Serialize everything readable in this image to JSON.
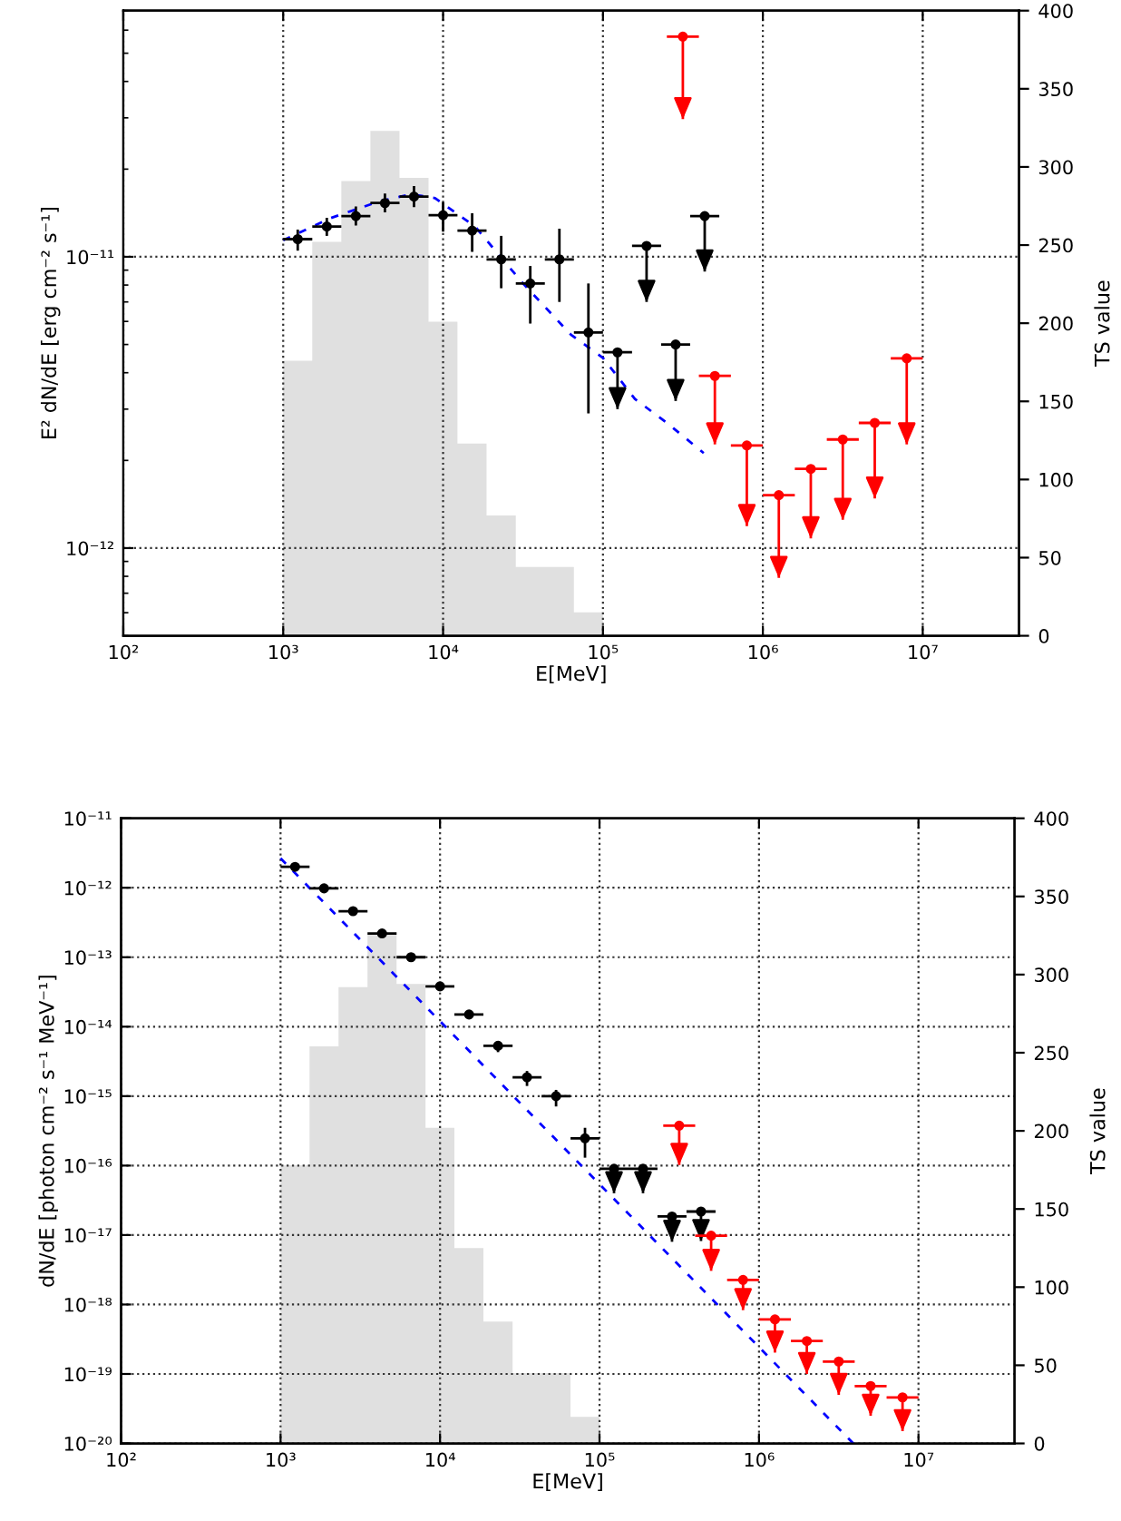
{
  "chart_data": [
    {
      "type": "scatter",
      "xlabel": "E[MeV]",
      "ylabel": "E² dN/dE [erg cm⁻² s⁻¹]",
      "y2label": "TS value",
      "log": "xy",
      "grid": true,
      "xlim": [
        100,
        40000000
      ],
      "ylim": [
        5e-13,
        7e-11
      ],
      "y2lim": [
        0,
        400
      ],
      "xticks": [
        {
          "value": 100,
          "label": "10²"
        },
        {
          "value": 1000,
          "label": "10³"
        },
        {
          "value": 10000,
          "label": "10⁴"
        },
        {
          "value": 100000,
          "label": "10⁵"
        },
        {
          "value": 1000000,
          "label": "10⁶"
        },
        {
          "value": 10000000,
          "label": "10⁷"
        }
      ],
      "yticks": [
        {
          "value": 1e-12,
          "label": "10⁻¹²"
        },
        {
          "value": 1e-11,
          "label": "10⁻¹¹"
        }
      ],
      "y2ticks": [
        0,
        50,
        100,
        150,
        200,
        250,
        300,
        350,
        400
      ],
      "series": [
        {
          "type": "histogram",
          "axis": "y2",
          "color": "#e0e0e0",
          "bins": [
            1000,
            1520,
            2310,
            3510,
            5340,
            8110,
            12300,
            18700,
            28500,
            43300,
            65800,
            100000
          ],
          "values": [
            176,
            252,
            291,
            323,
            293,
            201,
            123,
            77,
            44,
            44,
            15
          ]
        },
        {
          "type": "scatter",
          "color": "#000000",
          "marker": "circle",
          "x": [
            1233,
            1874,
            2848,
            4329,
            6579,
            10000,
            15200,
            23100,
            35100,
            53400,
            81100
          ],
          "values": [
            1.15e-11,
            1.27e-11,
            1.38e-11,
            1.53e-11,
            1.61e-11,
            1.39e-11,
            1.23e-11,
            9.8e-12,
            8.1e-12,
            9.8e-12,
            5.5e-12
          ],
          "xerrors": [
            [
              1000,
              1520
            ],
            [
              1520,
              2310
            ],
            [
              2310,
              3510
            ],
            [
              3510,
              5340
            ],
            [
              5340,
              8110
            ],
            [
              8110,
              12300
            ],
            [
              12300,
              18700
            ],
            [
              18700,
              28500
            ],
            [
              28500,
              43300
            ],
            [
              43300,
              65800
            ],
            [
              65800,
              100000
            ]
          ],
          "errors": [
            [
              1.05e-11,
              1.24e-11
            ],
            [
              1.18e-11,
              1.36e-11
            ],
            [
              1.28e-11,
              1.49e-11
            ],
            [
              1.42e-11,
              1.65e-11
            ],
            [
              1.48e-11,
              1.75e-11
            ],
            [
              1.22e-11,
              1.54e-11
            ],
            [
              1.04e-11,
              1.41e-11
            ],
            [
              7.8e-12,
              1.18e-11
            ],
            [
              5.9e-12,
              9.3e-12
            ],
            [
              7e-12,
              1.25e-11
            ],
            [
              2.9e-12,
              8.1e-12
            ]
          ]
        },
        {
          "type": "scatter",
          "color": "#000000",
          "marker": "circle",
          "x": [
            123300,
            187400,
            284800,
            432900
          ],
          "values": [
            4.7e-12,
            1.09e-11,
            5e-12,
            1.38e-11
          ],
          "xerrors": [
            [
              100000,
              152000
            ],
            [
              152000,
              231000
            ],
            [
              231000,
              351000
            ],
            [
              351000,
              534000
            ]
          ],
          "errors": [
            [
              3e-12,
              4.7e-12
            ],
            [
              7e-12,
              1.09e-11
            ],
            [
              3.2e-12,
              5e-12
            ],
            [
              8.9e-12,
              1.38e-11
            ]
          ]
        },
        {
          "type": "scatter",
          "color": "#ff0000",
          "marker": "circle",
          "x": [
            316000,
            501000,
            794000,
            1259000,
            1995000,
            3162000,
            5012000,
            7943000
          ],
          "values": [
            5.7e-11,
            3.9e-12,
            2.25e-12,
            1.52e-12,
            1.87e-12,
            2.36e-12,
            2.69e-12,
            4.48e-12
          ],
          "xerrors": [
            [
              251000,
              398000
            ],
            [
              398000,
              631000
            ],
            [
              631000,
              1000000
            ],
            [
              1000000,
              1585000
            ],
            [
              1585000,
              2512000
            ],
            [
              2512000,
              3981000
            ],
            [
              3981000,
              6310000
            ],
            [
              6310000,
              10000000
            ]
          ],
          "errors": [
            [
              2.97e-11,
              5.7e-11
            ],
            [
              2.27e-12,
              3.9e-12
            ],
            [
              1.19e-12,
              2.25e-12
            ],
            [
              7.9e-13,
              1.52e-12
            ],
            [
              1.08e-12,
              1.87e-12
            ],
            [
              1.25e-12,
              2.36e-12
            ],
            [
              1.48e-12,
              2.69e-12
            ],
            [
              2.27e-12,
              4.48e-12
            ]
          ]
        },
        {
          "type": "line",
          "color": "#0000ff",
          "line_style": "dashed",
          "x": [
            1000,
            1995,
            3981,
            6310,
            8913,
            15850,
            31620,
            63100,
            100000,
            158500,
            251200,
            426600
          ],
          "values": [
            1.14e-11,
            1.36e-11,
            1.55e-11,
            1.64e-11,
            1.59e-11,
            1.27e-11,
            8.1e-12,
            5.4e-12,
            4.5e-12,
            3.25e-12,
            2.69e-12,
            2.12e-12
          ]
        }
      ]
    },
    {
      "type": "scatter",
      "xlabel": "E[MeV]",
      "ylabel": "dN/dE [photon cm⁻² s⁻¹ MeV⁻¹]",
      "y2label": "TS value",
      "log": "xy",
      "grid": true,
      "xlim": [
        100,
        40000000
      ],
      "ylim": [
        1e-20,
        1e-11
      ],
      "y2lim": [
        0,
        400
      ],
      "xticks": [
        {
          "value": 100,
          "label": "10²"
        },
        {
          "value": 1000,
          "label": "10³"
        },
        {
          "value": 10000,
          "label": "10⁴"
        },
        {
          "value": 100000,
          "label": "10⁵"
        },
        {
          "value": 1000000,
          "label": "10⁶"
        },
        {
          "value": 10000000,
          "label": "10⁷"
        }
      ],
      "yticks": [
        {
          "value": 1e-20,
          "label": "10⁻²⁰"
        },
        {
          "value": 1e-19,
          "label": "10⁻¹⁹"
        },
        {
          "value": 1e-18,
          "label": "10⁻¹⁸"
        },
        {
          "value": 1e-17,
          "label": "10⁻¹⁷"
        },
        {
          "value": 1e-16,
          "label": "10⁻¹⁶"
        },
        {
          "value": 1e-15,
          "label": "10⁻¹⁵"
        },
        {
          "value": 1e-14,
          "label": "10⁻¹⁴"
        },
        {
          "value": 1e-13,
          "label": "10⁻¹³"
        },
        {
          "value": 1e-12,
          "label": "10⁻¹²"
        },
        {
          "value": 1e-11,
          "label": "10⁻¹¹"
        }
      ],
      "y2ticks": [
        0,
        50,
        100,
        150,
        200,
        250,
        300,
        350,
        400
      ],
      "series": [
        {
          "type": "histogram",
          "axis": "y2",
          "color": "#e0e0e0",
          "bins": [
            1000,
            1520,
            2310,
            3510,
            5340,
            8110,
            12300,
            18700,
            28500,
            43300,
            65800,
            100000
          ],
          "values": [
            178,
            254,
            292,
            326,
            294,
            202,
            125,
            78,
            45,
            45,
            17
          ]
        },
        {
          "type": "scatter",
          "color": "#000000",
          "marker": "circle",
          "x": [
            1233,
            1874,
            2848,
            4329,
            6579,
            10000,
            15200,
            23100,
            35100,
            53400,
            81100
          ],
          "values": [
            2e-12,
            9.8e-13,
            4.6e-13,
            2.2e-13,
            1e-13,
            3.8e-14,
            1.5e-14,
            5.3e-15,
            1.87e-15,
            1e-15,
            2.47e-16
          ],
          "xerrors": [
            [
              1000,
              1520
            ],
            [
              1520,
              2310
            ],
            [
              2310,
              3510
            ],
            [
              3510,
              5340
            ],
            [
              5340,
              8110
            ],
            [
              8110,
              12300
            ],
            [
              12300,
              18700
            ],
            [
              18700,
              28500
            ],
            [
              28500,
              43300
            ],
            [
              43300,
              65800
            ],
            [
              65800,
              100000
            ]
          ],
          "errors": [
            null,
            null,
            null,
            null,
            null,
            null,
            null,
            [
              4.3e-15,
              6.2e-15
            ],
            [
              1.4e-15,
              2.3e-15
            ],
            [
              7.1e-16,
              1.23e-15
            ],
            [
              1.3e-16,
              3.5e-16
            ]
          ]
        },
        {
          "type": "scatter",
          "color": "#000000",
          "marker": "circle",
          "x": [
            123300,
            187400,
            284800,
            432900
          ],
          "values": [
            9e-17,
            9e-17,
            1.85e-17,
            2.18e-17
          ],
          "xerrors": [
            [
              100000,
              152000
            ],
            [
              152000,
              231000
            ],
            [
              231000,
              351000
            ],
            [
              351000,
              534000
            ]
          ],
          "errors": [
            [
              4e-17,
              9e-17
            ],
            [
              4e-17,
              9e-17
            ],
            [
              8e-18,
              1.85e-17
            ],
            [
              8.2e-18,
              2.18e-17
            ]
          ]
        },
        {
          "type": "scatter",
          "color": "#ff0000",
          "marker": "circle",
          "x": [
            316000,
            501000,
            794000,
            1259000,
            1995000,
            3162000,
            5012000,
            7943000
          ],
          "values": [
            3.76e-16,
            9.8e-18,
            2.26e-18,
            6.1e-19,
            2.98e-19,
            1.51e-19,
            6.7e-20,
            4.6e-20
          ],
          "xerrors": [
            [
              251000,
              398000
            ],
            [
              398000,
              631000
            ],
            [
              631000,
              1000000
            ],
            [
              1000000,
              1585000
            ],
            [
              1585000,
              2512000
            ],
            [
              2512000,
              3981000
            ],
            [
              3981000,
              6310000
            ],
            [
              6310000,
              10000000
            ]
          ],
          "errors": [
            [
              1.02e-16,
              3.76e-16
            ],
            [
              3.05e-18,
              9.8e-18
            ],
            [
              8.3e-19,
              2.26e-18
            ],
            [
              2.03e-19,
              6.1e-19
            ],
            [
              1e-19,
              2.98e-19
            ],
            [
              5e-20,
              1.51e-19
            ],
            [
              2.5e-20,
              6.7e-20
            ],
            [
              1.5e-20,
              4.6e-20
            ]
          ]
        },
        {
          "type": "line",
          "color": "#0000ff",
          "line_style": "dashed",
          "x": [
            1000,
            3900000
          ],
          "values": [
            2.66e-12,
            1e-20
          ]
        }
      ]
    }
  ]
}
